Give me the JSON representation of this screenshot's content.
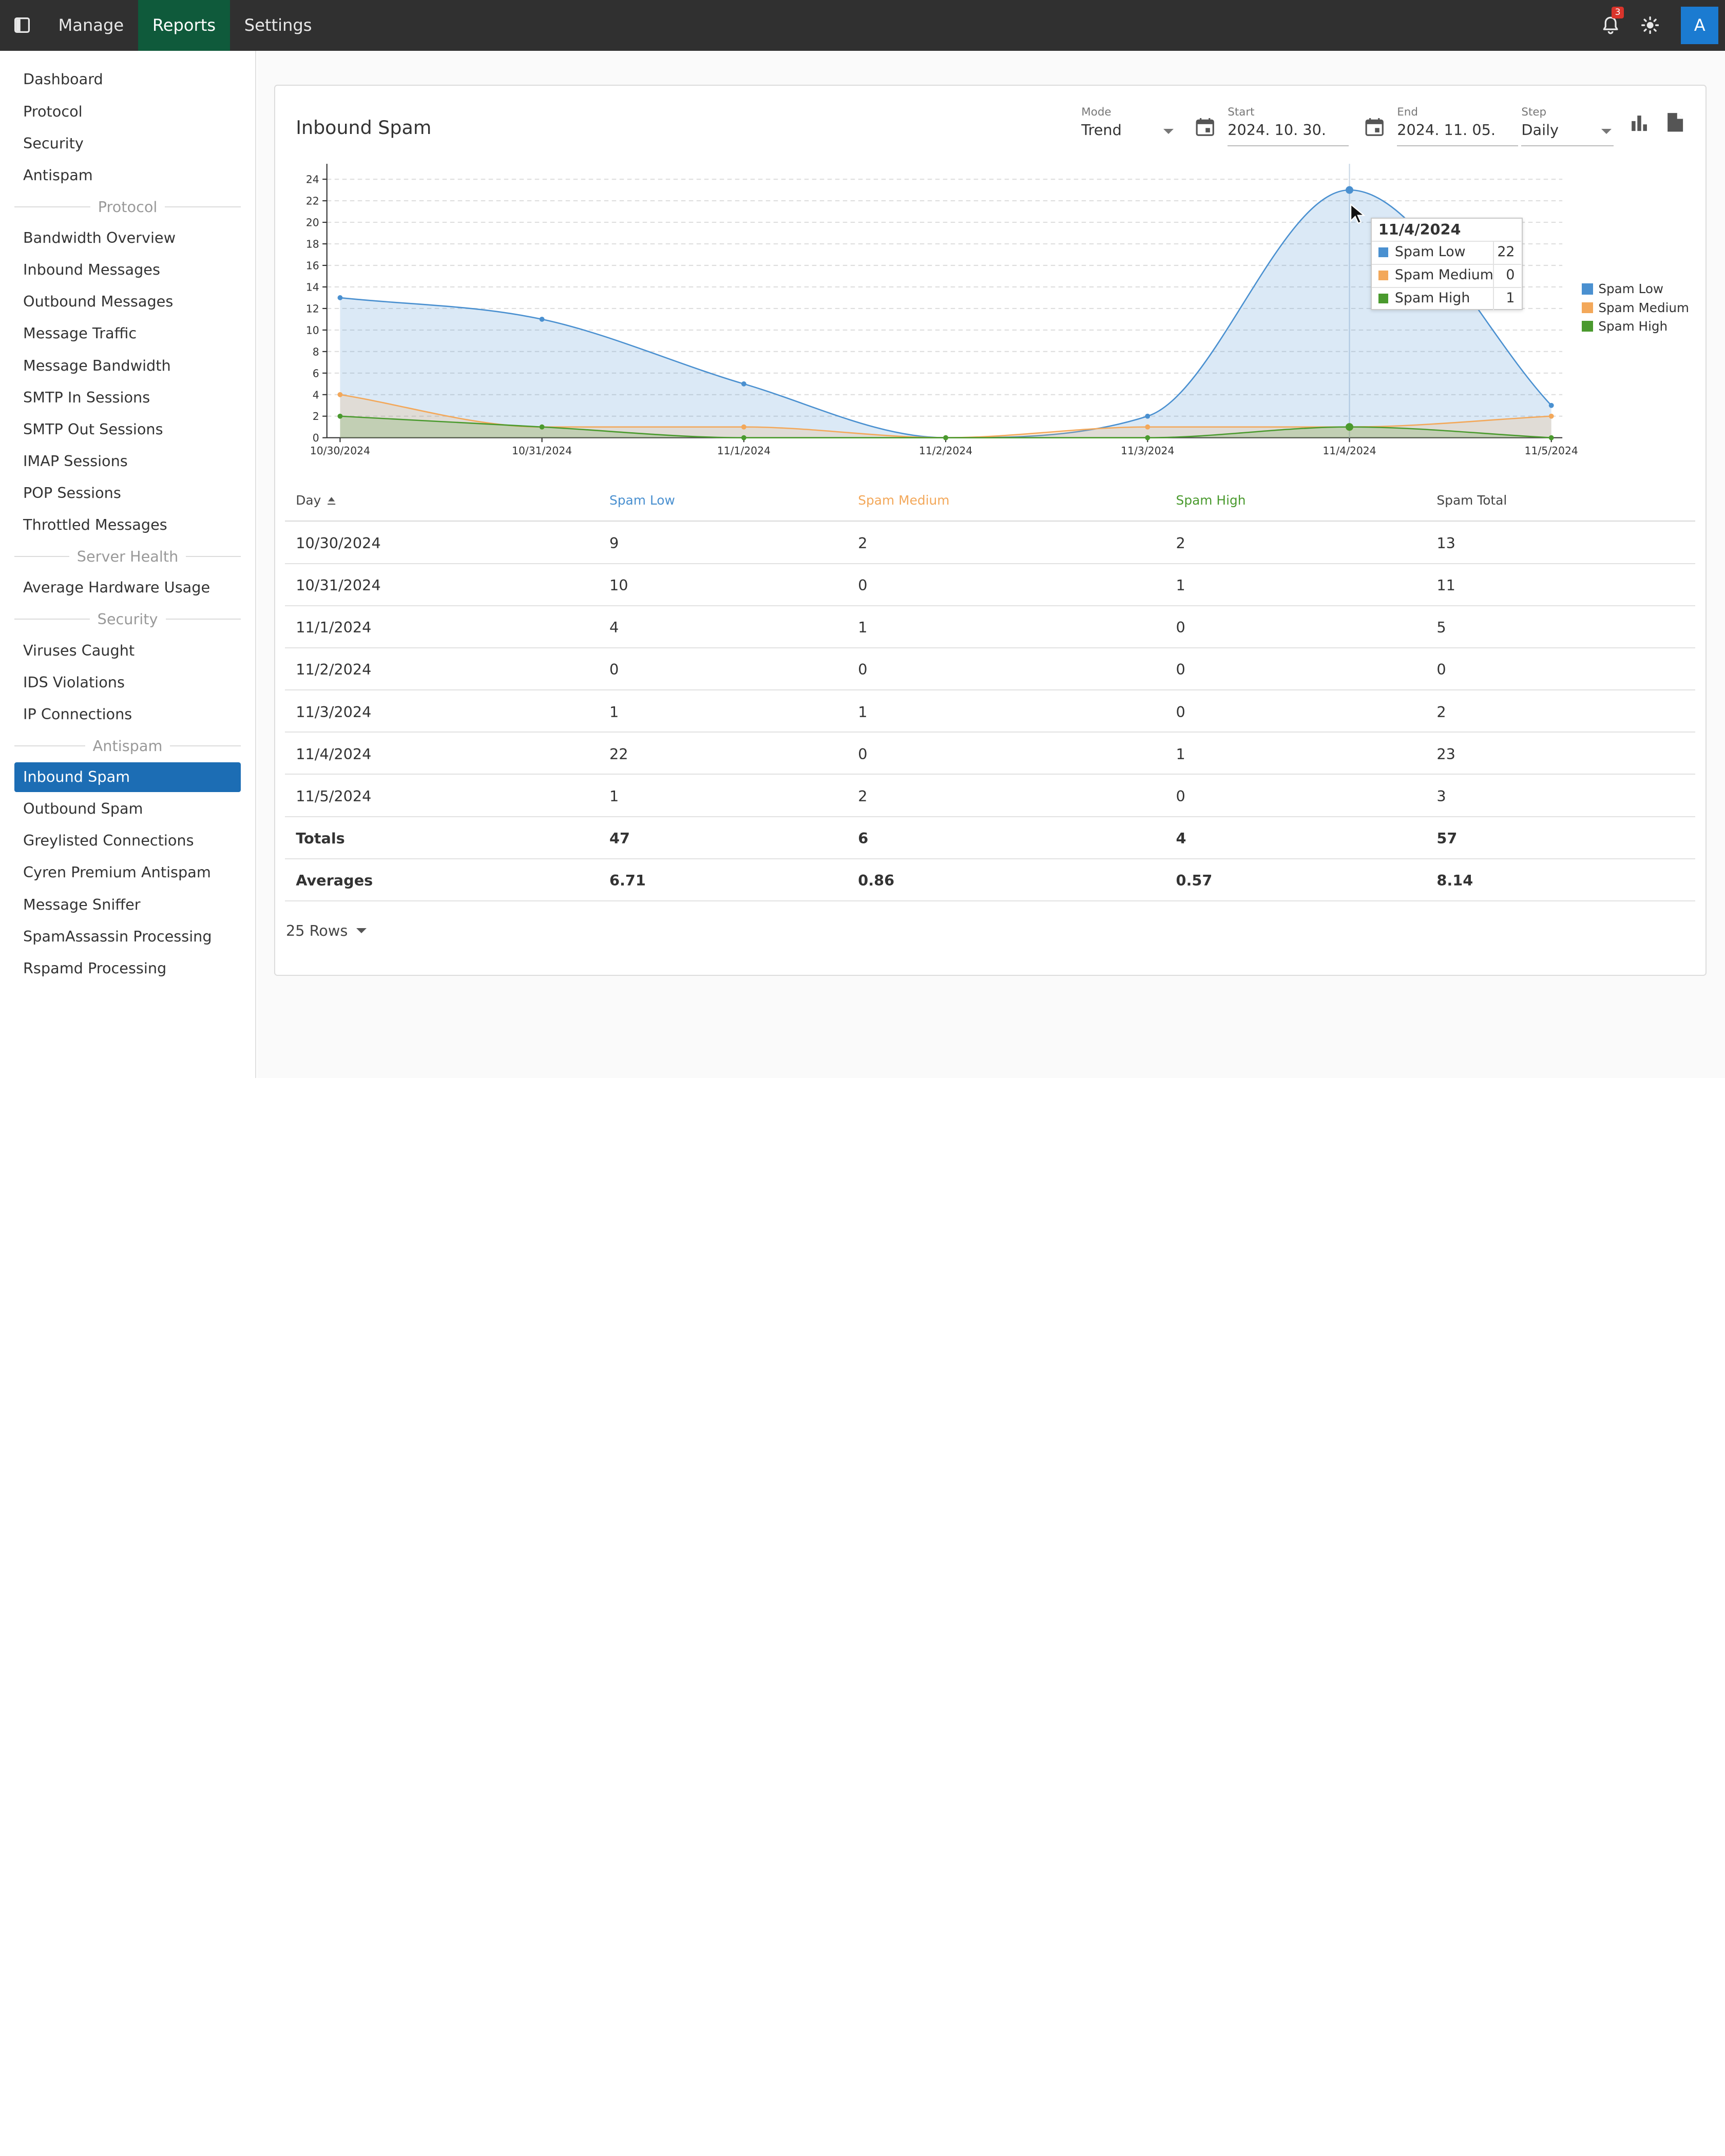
{
  "topbar": {
    "tabs": [
      {
        "label": "Manage",
        "active": false
      },
      {
        "label": "Reports",
        "active": true
      },
      {
        "label": "Settings",
        "active": false
      }
    ],
    "notification_count": "3",
    "avatar_initial": "A",
    "accent_color": "#0f5a3b"
  },
  "sidebar": {
    "items": [
      {
        "type": "item",
        "label": "Dashboard"
      },
      {
        "type": "item",
        "label": "Protocol"
      },
      {
        "type": "item",
        "label": "Security"
      },
      {
        "type": "item",
        "label": "Antispam"
      },
      {
        "type": "section",
        "label": "Protocol"
      },
      {
        "type": "item",
        "label": "Bandwidth Overview"
      },
      {
        "type": "item",
        "label": "Inbound Messages"
      },
      {
        "type": "item",
        "label": "Outbound Messages"
      },
      {
        "type": "item",
        "label": "Message Traffic"
      },
      {
        "type": "item",
        "label": "Message Bandwidth"
      },
      {
        "type": "item",
        "label": "SMTP In Sessions"
      },
      {
        "type": "item",
        "label": "SMTP Out Sessions"
      },
      {
        "type": "item",
        "label": "IMAP Sessions"
      },
      {
        "type": "item",
        "label": "POP Sessions"
      },
      {
        "type": "item",
        "label": "Throttled Messages"
      },
      {
        "type": "section",
        "label": "Server Health"
      },
      {
        "type": "item",
        "label": "Average Hardware Usage"
      },
      {
        "type": "section",
        "label": "Security"
      },
      {
        "type": "item",
        "label": "Viruses Caught"
      },
      {
        "type": "item",
        "label": "IDS Violations"
      },
      {
        "type": "item",
        "label": "IP Connections"
      },
      {
        "type": "section",
        "label": "Antispam"
      },
      {
        "type": "item",
        "label": "Inbound Spam",
        "active": true
      },
      {
        "type": "item",
        "label": "Outbound Spam"
      },
      {
        "type": "item",
        "label": "Greylisted Connections"
      },
      {
        "type": "item",
        "label": "Cyren Premium Antispam"
      },
      {
        "type": "item",
        "label": "Message Sniffer"
      },
      {
        "type": "item",
        "label": "SpamAssassin Processing"
      },
      {
        "type": "item",
        "label": "Rspamd Processing"
      }
    ],
    "active_color": "#1c6db4"
  },
  "report": {
    "title": "Inbound Spam",
    "mode": {
      "label": "Mode",
      "value": "Trend"
    },
    "start": {
      "label": "Start",
      "value": "2024. 10. 30."
    },
    "end": {
      "label": "End",
      "value": "2024. 11. 05."
    },
    "step": {
      "label": "Step",
      "value": "Daily"
    },
    "tooltip": {
      "date": "11/4/2024",
      "rows": [
        {
          "name": "Spam Low",
          "value": "22"
        },
        {
          "name": "Spam Medium",
          "value": "0"
        },
        {
          "name": "Spam High",
          "value": "1"
        }
      ]
    },
    "rows_per_page": "25 Rows"
  },
  "chart_data": {
    "type": "area",
    "categories": [
      "10/30/2024",
      "10/31/2024",
      "11/1/2024",
      "11/2/2024",
      "11/3/2024",
      "11/4/2024",
      "11/5/2024"
    ],
    "series": [
      {
        "name": "Spam Low",
        "values": [
          13,
          11,
          5,
          0,
          2,
          23,
          3
        ],
        "color": "#4a90d0"
      },
      {
        "name": "Spam Medium",
        "values": [
          4,
          1,
          1,
          0,
          1,
          1,
          2
        ],
        "color": "#f3a85a"
      },
      {
        "name": "Spam High",
        "values": [
          2,
          1,
          0,
          0,
          0,
          1,
          0
        ],
        "color": "#4a9a2e"
      }
    ],
    "ylim": [
      0,
      24
    ],
    "yticks": [
      "0",
      "2",
      "4",
      "6",
      "8",
      "10",
      "12",
      "14",
      "16",
      "18",
      "20",
      "22",
      "24"
    ],
    "grid": true,
    "legend": "right"
  },
  "table": {
    "columns": [
      {
        "label": "Day",
        "color": "#444444"
      },
      {
        "label": "Spam Low",
        "color": "#4a90d0"
      },
      {
        "label": "Spam Medium",
        "color": "#f3a85a"
      },
      {
        "label": "Spam High",
        "color": "#4a9a2e"
      },
      {
        "label": "Spam Total",
        "color": "#444444"
      }
    ],
    "rows": [
      [
        "10/30/2024",
        "9",
        "2",
        "2",
        "13"
      ],
      [
        "10/31/2024",
        "10",
        "0",
        "1",
        "11"
      ],
      [
        "11/1/2024",
        "4",
        "1",
        "0",
        "5"
      ],
      [
        "11/2/2024",
        "0",
        "0",
        "0",
        "0"
      ],
      [
        "11/3/2024",
        "1",
        "1",
        "0",
        "2"
      ],
      [
        "11/4/2024",
        "22",
        "0",
        "1",
        "23"
      ],
      [
        "11/5/2024",
        "1",
        "2",
        "0",
        "3"
      ]
    ],
    "totals": [
      "Totals",
      "47",
      "6",
      "4",
      "57"
    ],
    "averages": [
      "Averages",
      "6.71",
      "0.86",
      "0.57",
      "8.14"
    ]
  }
}
